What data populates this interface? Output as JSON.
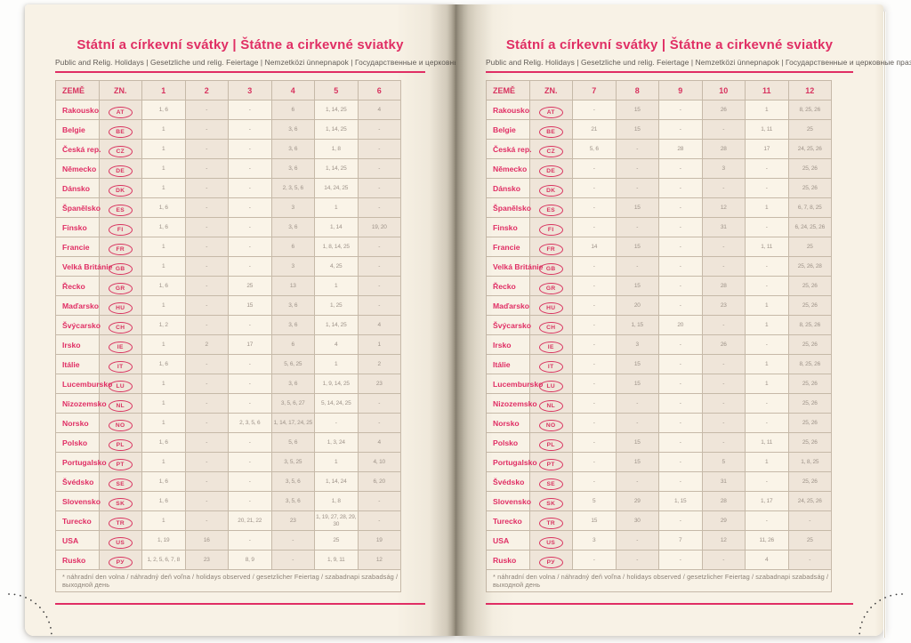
{
  "title": "Státní a církevní svátky | Štátne a cirkevné sviatky",
  "subtitle": "Public and Relig. Holidays | Gesetzliche und relig. Feiertage | Nemzetközi ünnepnapok | Государственные и церковные праздники",
  "footnote": "* náhradní den volna / náhradný deň voľna / holidays observed / gesetzlicher Feiertag / szabadnapi szabadság / выходной день",
  "colors": {
    "accent_pink": "#e02e64",
    "paper": "#f8f2e6",
    "cell_shaded": "#efe5d9",
    "cell_light": "#faf4e8",
    "table_border": "#c6b9a8",
    "value_text": "#9d9288"
  },
  "pages": [
    {
      "side": "left",
      "columns": [
        "ZEMĚ",
        "ZN.",
        "1",
        "2",
        "3",
        "4",
        "5",
        "6"
      ],
      "rows": [
        {
          "country": "Rakousko",
          "code": "AT",
          "values": [
            "1, 6",
            "-",
            "-",
            "6",
            "1, 14, 25",
            "4"
          ]
        },
        {
          "country": "Belgie",
          "code": "BE",
          "values": [
            "1",
            "-",
            "-",
            "3, 6",
            "1, 14, 25",
            "-"
          ]
        },
        {
          "country": "Česká rep.",
          "code": "CZ",
          "values": [
            "1",
            "-",
            "-",
            "3, 6",
            "1, 8",
            "-"
          ]
        },
        {
          "country": "Německo",
          "code": "DE",
          "values": [
            "1",
            "-",
            "-",
            "3, 6",
            "1, 14, 25",
            "-"
          ]
        },
        {
          "country": "Dánsko",
          "code": "DK",
          "values": [
            "1",
            "-",
            "-",
            "2, 3, 5, 6",
            "14, 24, 25",
            "-"
          ]
        },
        {
          "country": "Španělsko",
          "code": "ES",
          "values": [
            "1, 6",
            "-",
            "-",
            "3",
            "1",
            "-"
          ]
        },
        {
          "country": "Finsko",
          "code": "FI",
          "values": [
            "1, 6",
            "-",
            "-",
            "3, 6",
            "1, 14",
            "19, 20"
          ]
        },
        {
          "country": "Francie",
          "code": "FR",
          "values": [
            "1",
            "-",
            "-",
            "6",
            "1, 8, 14, 25",
            "-"
          ]
        },
        {
          "country": "Velká Británie",
          "code": "GB",
          "values": [
            "1",
            "-",
            "-",
            "3",
            "4, 25",
            "-"
          ]
        },
        {
          "country": "Řecko",
          "code": "GR",
          "values": [
            "1, 6",
            "-",
            "25",
            "13",
            "1",
            "-"
          ]
        },
        {
          "country": "Maďarsko",
          "code": "HU",
          "values": [
            "1",
            "-",
            "15",
            "3, 6",
            "1, 25",
            "-"
          ]
        },
        {
          "country": "Švýcarsko",
          "code": "CH",
          "values": [
            "1, 2",
            "-",
            "-",
            "3, 6",
            "1, 14, 25",
            "4"
          ]
        },
        {
          "country": "Irsko",
          "code": "IE",
          "values": [
            "1",
            "2",
            "17",
            "6",
            "4",
            "1"
          ]
        },
        {
          "country": "Itálie",
          "code": "IT",
          "values": [
            "1, 6",
            "-",
            "-",
            "5, 6, 25",
            "1",
            "2"
          ]
        },
        {
          "country": "Lucembursko",
          "code": "LU",
          "values": [
            "1",
            "-",
            "-",
            "3, 6",
            "1, 9, 14, 25",
            "23"
          ]
        },
        {
          "country": "Nizozemsko",
          "code": "NL",
          "values": [
            "1",
            "-",
            "-",
            "3, 5, 6, 27",
            "5, 14, 24, 25",
            "-"
          ]
        },
        {
          "country": "Norsko",
          "code": "NO",
          "values": [
            "1",
            "-",
            "2, 3, 5, 6",
            "1, 14, 17, 24, 25",
            "-",
            "-"
          ]
        },
        {
          "country": "Polsko",
          "code": "PL",
          "values": [
            "1, 6",
            "-",
            "-",
            "5, 6",
            "1, 3, 24",
            "4"
          ]
        },
        {
          "country": "Portugalsko",
          "code": "PT",
          "values": [
            "1",
            "-",
            "-",
            "3, 5, 25",
            "1",
            "4, 10"
          ]
        },
        {
          "country": "Švédsko",
          "code": "SE",
          "values": [
            "1, 6",
            "-",
            "-",
            "3, 5, 6",
            "1, 14, 24",
            "6, 20"
          ]
        },
        {
          "country": "Slovensko",
          "code": "SK",
          "values": [
            "1, 6",
            "-",
            "-",
            "3, 5, 6",
            "1, 8",
            "-"
          ]
        },
        {
          "country": "Turecko",
          "code": "TR",
          "values": [
            "1",
            "-",
            "20, 21, 22",
            "23",
            "1, 19, 27, 28, 29, 30",
            "-"
          ]
        },
        {
          "country": "USA",
          "code": "US",
          "values": [
            "1, 19",
            "16",
            "-",
            "-",
            "25",
            "19"
          ]
        },
        {
          "country": "Rusko",
          "code": "РУ",
          "values": [
            "1, 2, 5, 6, 7, 8",
            "23",
            "8, 9",
            "-",
            "1, 9, 11",
            "12"
          ]
        }
      ]
    },
    {
      "side": "right",
      "columns": [
        "ZEMĚ",
        "ZN.",
        "7",
        "8",
        "9",
        "10",
        "11",
        "12"
      ],
      "rows": [
        {
          "country": "Rakousko",
          "code": "AT",
          "values": [
            "-",
            "15",
            "-",
            "26",
            "1",
            "8, 25, 26"
          ]
        },
        {
          "country": "Belgie",
          "code": "BE",
          "values": [
            "21",
            "15",
            "-",
            "-",
            "1, 11",
            "25"
          ]
        },
        {
          "country": "Česká rep.",
          "code": "CZ",
          "values": [
            "5, 6",
            "-",
            "28",
            "28",
            "17",
            "24, 25, 26"
          ]
        },
        {
          "country": "Německo",
          "code": "DE",
          "values": [
            "-",
            "-",
            "-",
            "3",
            "-",
            "25, 26"
          ]
        },
        {
          "country": "Dánsko",
          "code": "DK",
          "values": [
            "-",
            "-",
            "-",
            "-",
            "-",
            "25, 26"
          ]
        },
        {
          "country": "Španělsko",
          "code": "ES",
          "values": [
            "-",
            "15",
            "-",
            "12",
            "1",
            "6, 7, 8, 25"
          ]
        },
        {
          "country": "Finsko",
          "code": "FI",
          "values": [
            "-",
            "-",
            "-",
            "31",
            "-",
            "6, 24, 25, 26"
          ]
        },
        {
          "country": "Francie",
          "code": "FR",
          "values": [
            "14",
            "15",
            "-",
            "-",
            "1, 11",
            "25"
          ]
        },
        {
          "country": "Velká Británie",
          "code": "GB",
          "values": [
            "-",
            "-",
            "-",
            "-",
            "-",
            "25, 26, 28"
          ]
        },
        {
          "country": "Řecko",
          "code": "GR",
          "values": [
            "-",
            "15",
            "-",
            "28",
            "-",
            "25, 26"
          ]
        },
        {
          "country": "Maďarsko",
          "code": "HU",
          "values": [
            "-",
            "20",
            "-",
            "23",
            "1",
            "25, 26"
          ]
        },
        {
          "country": "Švýcarsko",
          "code": "CH",
          "values": [
            "-",
            "1, 15",
            "20",
            "-",
            "1",
            "8, 25, 26"
          ]
        },
        {
          "country": "Irsko",
          "code": "IE",
          "values": [
            "-",
            "3",
            "-",
            "26",
            "-",
            "25, 26"
          ]
        },
        {
          "country": "Itálie",
          "code": "IT",
          "values": [
            "-",
            "15",
            "-",
            "-",
            "1",
            "8, 25, 26"
          ]
        },
        {
          "country": "Lucembursko",
          "code": "LU",
          "values": [
            "-",
            "15",
            "-",
            "-",
            "1",
            "25, 26"
          ]
        },
        {
          "country": "Nizozemsko",
          "code": "NL",
          "values": [
            "-",
            "-",
            "-",
            "-",
            "-",
            "25, 26"
          ]
        },
        {
          "country": "Norsko",
          "code": "NO",
          "values": [
            "-",
            "-",
            "-",
            "-",
            "-",
            "25, 26"
          ]
        },
        {
          "country": "Polsko",
          "code": "PL",
          "values": [
            "-",
            "15",
            "-",
            "-",
            "1, 11",
            "25, 26"
          ]
        },
        {
          "country": "Portugalsko",
          "code": "PT",
          "values": [
            "-",
            "15",
            "-",
            "5",
            "1",
            "1, 8, 25"
          ]
        },
        {
          "country": "Švédsko",
          "code": "SE",
          "values": [
            "-",
            "-",
            "-",
            "31",
            "-",
            "25, 26"
          ]
        },
        {
          "country": "Slovensko",
          "code": "SK",
          "values": [
            "5",
            "29",
            "1, 15",
            "28",
            "1, 17",
            "24, 25, 26"
          ]
        },
        {
          "country": "Turecko",
          "code": "TR",
          "values": [
            "15",
            "30",
            "-",
            "29",
            "-",
            "-"
          ]
        },
        {
          "country": "USA",
          "code": "US",
          "values": [
            "3",
            "-",
            "7",
            "12",
            "11, 26",
            "25"
          ]
        },
        {
          "country": "Rusko",
          "code": "РУ",
          "values": [
            "-",
            "-",
            "-",
            "-",
            "4",
            "-"
          ]
        }
      ]
    }
  ]
}
